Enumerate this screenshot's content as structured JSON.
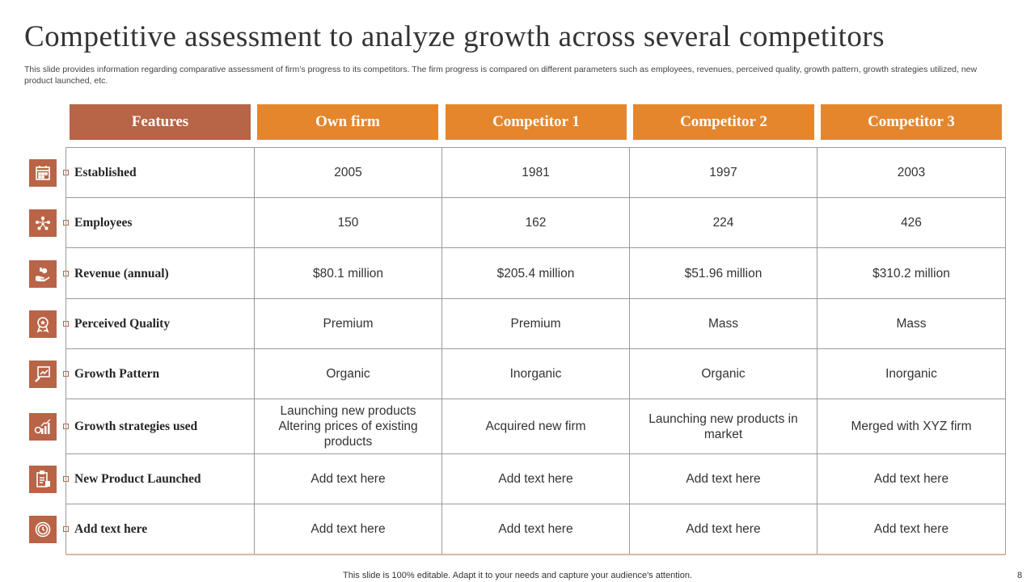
{
  "title": "Competitive assessment to analyze growth across several competitors",
  "subtitle": "This slide provides information regarding comparative assessment of firm’s progress to its competitors. The firm progress is compared on different parameters such as employees, revenues, perceived quality, growth pattern, growth strategies utilized, new product launched, etc.",
  "table": {
    "headers": [
      "Features",
      "Own firm",
      "Competitor 1",
      "Competitor 2",
      "Competitor 3"
    ],
    "rows": [
      {
        "icon": "calendar-icon",
        "feature": "Established",
        "values": [
          "2005",
          "1981",
          "1997",
          "2003"
        ]
      },
      {
        "icon": "team-icon",
        "feature": "Employees",
        "values": [
          "150",
          "162",
          "224",
          "426"
        ]
      },
      {
        "icon": "money-hand-icon",
        "feature": "Revenue (annual)",
        "values": [
          "$80.1 million",
          "$205.4 million",
          "$51.96 million",
          "$310.2 million"
        ]
      },
      {
        "icon": "award-badge-icon",
        "feature": "Perceived Quality",
        "values": [
          "Premium",
          "Premium",
          "Mass",
          "Mass"
        ]
      },
      {
        "icon": "growth-chart-icon",
        "feature": "Growth Pattern",
        "values": [
          "Organic",
          "Inorganic",
          "Organic",
          "Inorganic"
        ]
      },
      {
        "icon": "strategy-chart-icon",
        "feature": "Growth strategies used",
        "values": [
          "Launching new products Altering prices of existing products",
          "Acquired new firm",
          "Launching new products in market",
          "Merged with XYZ firm"
        ]
      },
      {
        "icon": "product-checklist-icon",
        "feature": "New Product Launched",
        "values": [
          "Add text here",
          "Add text here",
          "Add text here",
          "Add text here"
        ]
      },
      {
        "icon": "clock-icon",
        "feature": "Add text here",
        "values": [
          "Add text here",
          "Add text here",
          "Add text here",
          "Add text here"
        ]
      }
    ]
  },
  "footer": "This slide is 100% editable. Adapt it to your needs and capture your audience's attention.",
  "page_number": "8",
  "colors": {
    "feature_header": "#b76447",
    "competitor_header": "#e5862d",
    "icon_bg": "#b96446"
  }
}
